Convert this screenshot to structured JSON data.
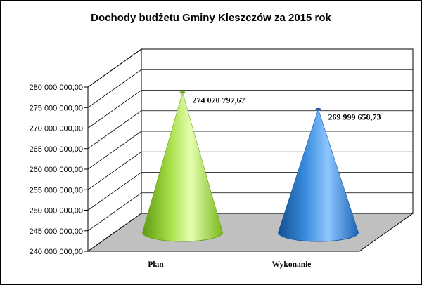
{
  "chart_data": {
    "type": "bar",
    "title": "Dochody budżetu Gminy Kleszczów za 2015 rok",
    "categories": [
      "Plan",
      "Wykonanie"
    ],
    "values": [
      274070797.67,
      269999658.73
    ],
    "data_labels": [
      "274 070 797,67",
      "269 999 658,73"
    ],
    "series": [
      {
        "values": [
          274070797.67,
          269999658.73
        ],
        "colors": [
          "#8fd42c",
          "#2a7fd4"
        ]
      }
    ],
    "ylim": [
      240000000,
      280000000
    ],
    "yticks": [
      240000000,
      245000000,
      250000000,
      255000000,
      260000000,
      265000000,
      270000000,
      275000000,
      280000000
    ],
    "ytick_labels": [
      "240 000 000,00",
      "245 000 000,00",
      "250 000 000,00",
      "255 000 000,00",
      "260 000 000,00",
      "265 000 000,00",
      "270 000 000,00",
      "275 000 000,00",
      "280 000 000,00"
    ],
    "xlabel": "",
    "ylabel": "",
    "grid": true,
    "legend": "none",
    "shape": "3d-cone",
    "floor_color": "#c0c0c0"
  }
}
